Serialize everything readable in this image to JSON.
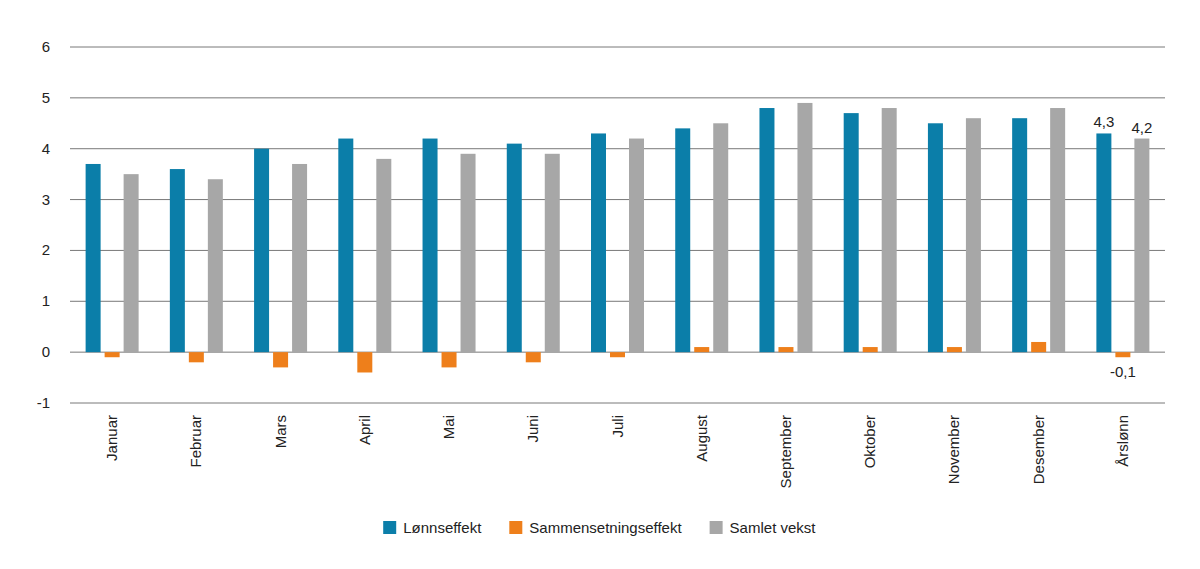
{
  "chart_data": {
    "type": "bar",
    "categories": [
      "Januar",
      "Februar",
      "Mars",
      "April",
      "Mai",
      "Juni",
      "Juli",
      "August",
      "September",
      "Oktober",
      "November",
      "Desember",
      "Årslønn"
    ],
    "series": [
      {
        "name": "Lønnseffekt",
        "color": "#0b7ea9",
        "values": [
          3.7,
          3.6,
          4.0,
          4.2,
          4.2,
          4.1,
          4.3,
          4.4,
          4.8,
          4.7,
          4.5,
          4.6,
          4.3
        ],
        "value_labels": [
          null,
          null,
          null,
          null,
          null,
          null,
          null,
          null,
          null,
          null,
          null,
          null,
          "4,3"
        ]
      },
      {
        "name": "Sammensetningseffekt",
        "color": "#ee7f1b",
        "values": [
          -0.1,
          -0.2,
          -0.3,
          -0.4,
          -0.3,
          -0.2,
          -0.1,
          0.1,
          0.1,
          0.1,
          0.1,
          0.2,
          -0.1
        ],
        "value_labels": [
          null,
          null,
          null,
          null,
          null,
          null,
          null,
          null,
          null,
          null,
          null,
          null,
          "-0,1"
        ]
      },
      {
        "name": "Samlet vekst",
        "color": "#a7a7a7",
        "values": [
          3.5,
          3.4,
          3.7,
          3.8,
          3.9,
          3.9,
          4.2,
          4.5,
          4.9,
          4.8,
          4.6,
          4.8,
          4.2
        ],
        "value_labels": [
          null,
          null,
          null,
          null,
          null,
          null,
          null,
          null,
          null,
          null,
          null,
          null,
          "4,2"
        ]
      }
    ],
    "ylim": [
      -1,
      6
    ],
    "yticks": [
      -1,
      0,
      1,
      2,
      3,
      4,
      5,
      6
    ],
    "grid": true,
    "legend": "bottom",
    "data_labels": true
  }
}
